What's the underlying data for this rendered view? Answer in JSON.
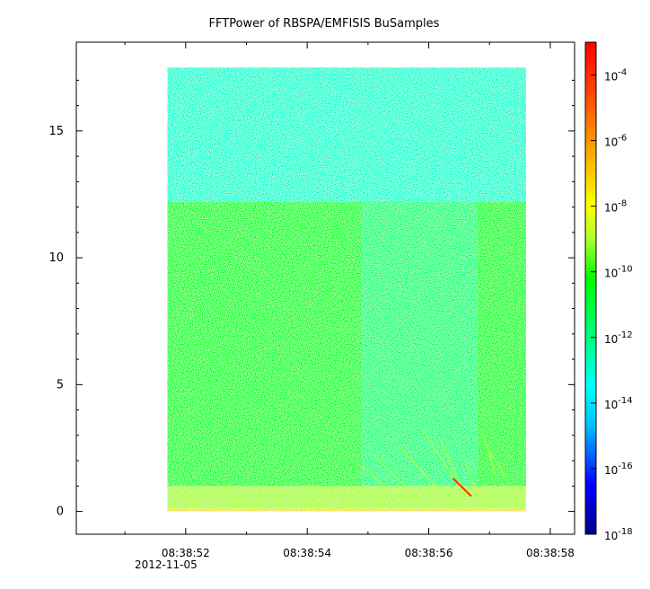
{
  "chart_data": {
    "type": "heatmap",
    "title": "FFTPower of RBSPA/EMFISIS  BuSamples",
    "xlabel": "",
    "ylabel": "",
    "x_ticks": [
      "08:38:52",
      "08:38:54",
      "08:38:56",
      "08:38:58"
    ],
    "x_tick_sublabel": "2012-11-05",
    "x_range_seconds": [
      50.2,
      58.4
    ],
    "y_ticks": [
      0,
      5,
      10,
      15
    ],
    "ylim": [
      -0.9,
      18.5
    ],
    "data_extent": {
      "x_seconds": [
        51.7,
        57.6
      ],
      "y": [
        0,
        17.5
      ]
    },
    "colorbar": {
      "scale": "log",
      "range": [
        1e-18,
        0.001
      ],
      "ticks": [
        {
          "base": "10",
          "exp": "-4"
        },
        {
          "base": "10",
          "exp": "-6"
        },
        {
          "base": "10",
          "exp": "-8"
        },
        {
          "base": "10",
          "exp": "-10"
        },
        {
          "base": "10",
          "exp": "-12"
        },
        {
          "base": "10",
          "exp": "-14"
        },
        {
          "base": "10",
          "exp": "-16"
        },
        {
          "base": "10",
          "exp": "-18"
        }
      ],
      "colormap": [
        "#00008b",
        "#0000ff",
        "#00bfff",
        "#00ffff",
        "#00ff7f",
        "#00ff00",
        "#adff2f",
        "#ffff00",
        "#ffa500",
        "#ff4500",
        "#ff0000"
      ]
    },
    "regions": [
      {
        "t": [
          51.7,
          57.6
        ],
        "f": [
          12.2,
          17.5
        ],
        "level": "1e-13"
      },
      {
        "t": [
          51.7,
          54.9
        ],
        "f": [
          1.0,
          12.2
        ],
        "level": "1e-11"
      },
      {
        "t": [
          54.9,
          56.8
        ],
        "f": [
          1.0,
          12.2
        ],
        "level": "1e-12"
      },
      {
        "t": [
          56.8,
          57.6
        ],
        "f": [
          1.0,
          12.2
        ],
        "level": "1e-11"
      },
      {
        "t": [
          51.7,
          57.6
        ],
        "f": [
          0.1,
          1.0
        ],
        "level": "1e-9"
      },
      {
        "t": [
          51.7,
          57.6
        ],
        "f": [
          0.0,
          0.1
        ],
        "level": "1e-7"
      }
    ]
  }
}
